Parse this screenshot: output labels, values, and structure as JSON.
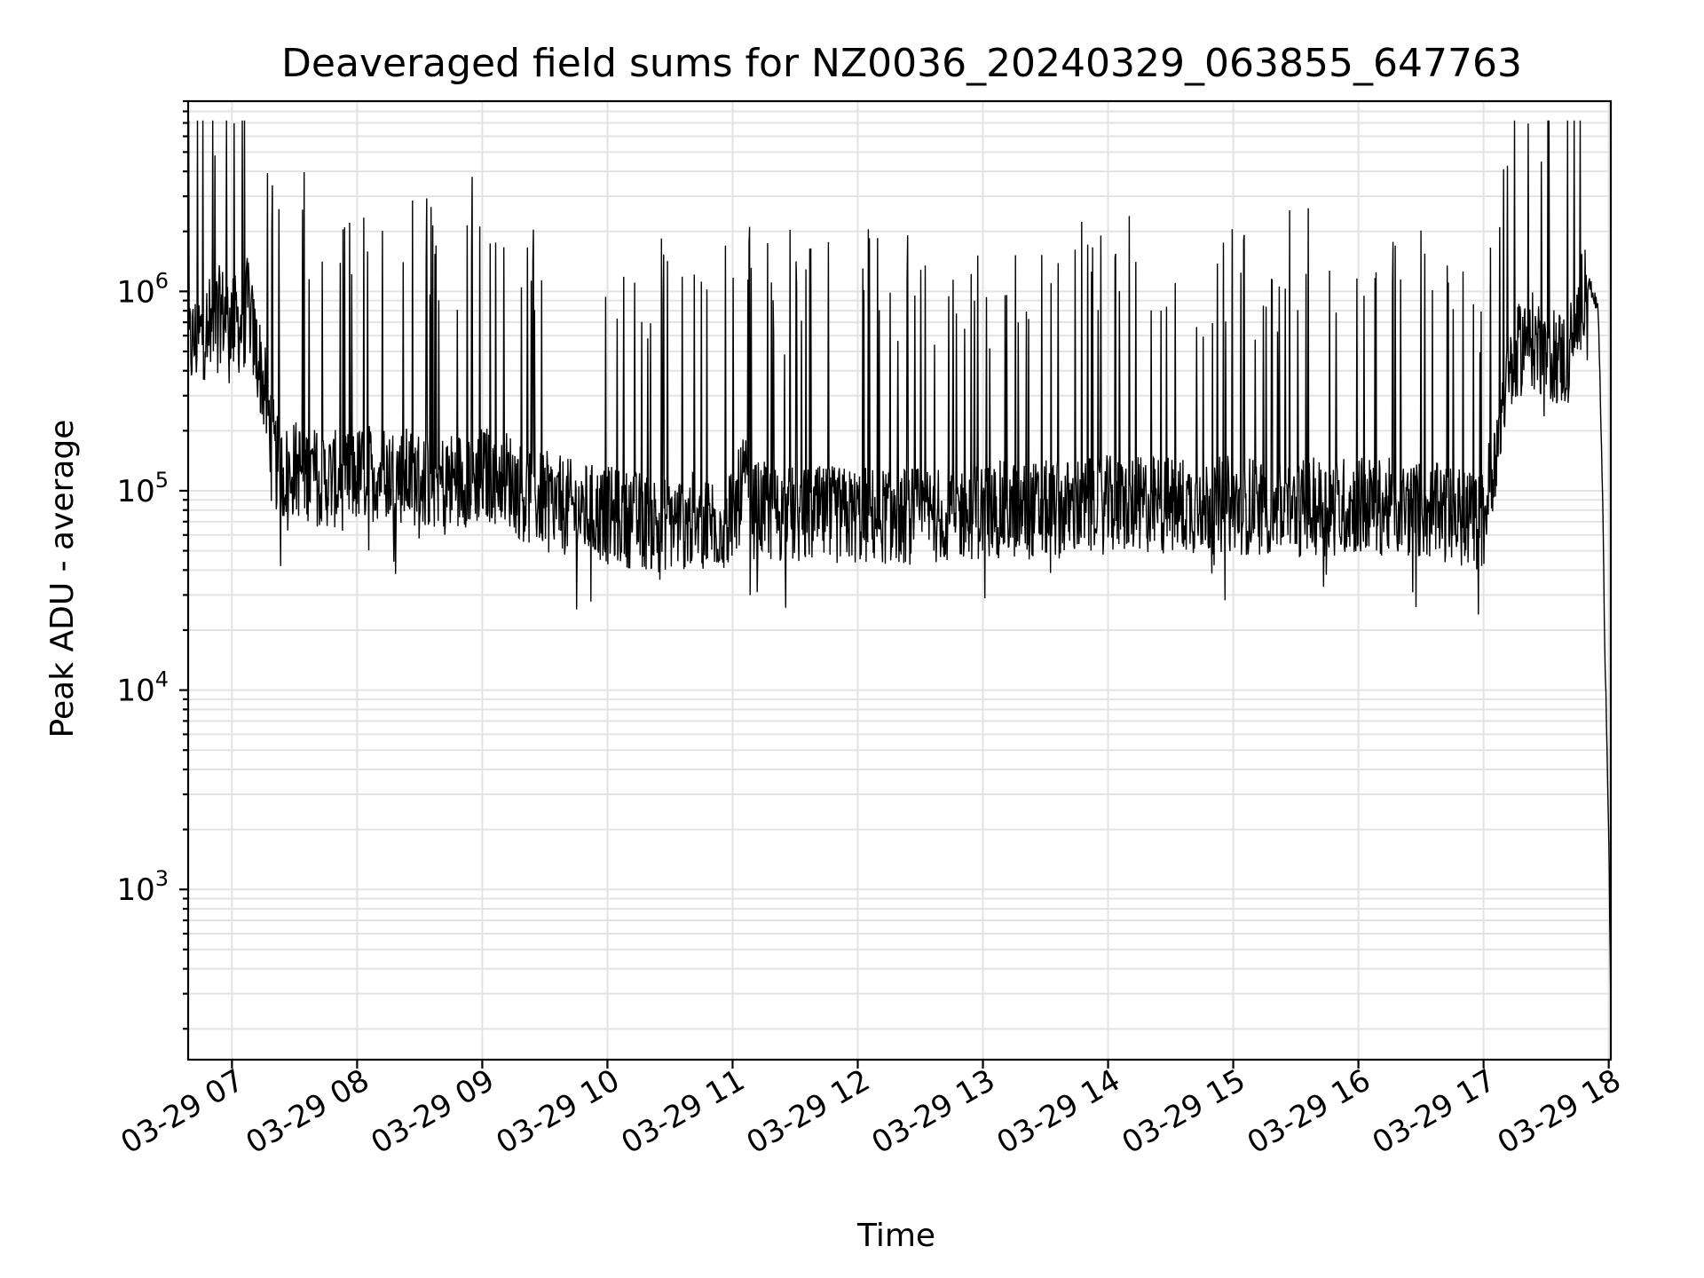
{
  "chart_data": {
    "type": "line",
    "title": "Deaveraged field sums for NZ0036_20240329_063855_647763",
    "xlabel": "Time",
    "ylabel": "Peak ADU - average",
    "yscale": "log",
    "ylim": [
      140,
      9000000
    ],
    "xlim": [
      "2024-03-29 06:39",
      "2024-03-29 18:01"
    ],
    "grid": "on (major and minor, both axes)",
    "x_ticks": [
      "03-29 07",
      "03-29 08",
      "03-29 09",
      "03-29 10",
      "03-29 11",
      "03-29 12",
      "03-29 13",
      "03-29 14",
      "03-29 15",
      "03-29 16",
      "03-29 17",
      "03-29 18"
    ],
    "y_ticks": [
      {
        "value": 1000,
        "base": "10",
        "exp": "3"
      },
      {
        "value": 10000,
        "base": "10",
        "exp": "4"
      },
      {
        "value": 100000,
        "base": "10",
        "exp": "5"
      },
      {
        "value": 1000000,
        "base": "10",
        "exp": "6"
      }
    ],
    "series": [
      {
        "color": "#000000",
        "x": [
          "2024-03-29 06:39",
          "2024-03-29 06:45",
          "2024-03-29 06:50",
          "2024-03-29 06:55",
          "2024-03-29 07:00",
          "2024-03-29 07:05",
          "2024-03-29 07:08",
          "2024-03-29 07:10",
          "2024-03-29 07:14",
          "2024-03-29 07:18",
          "2024-03-29 07:21",
          "2024-03-29 07:24",
          "2024-03-29 07:30",
          "2024-03-29 07:36",
          "2024-03-29 07:42",
          "2024-03-29 07:48",
          "2024-03-29 07:54",
          "2024-03-29 08:00",
          "2024-03-29 08:10",
          "2024-03-29 08:20",
          "2024-03-29 08:30",
          "2024-03-29 08:40",
          "2024-03-29 08:50",
          "2024-03-29 09:00",
          "2024-03-29 09:10",
          "2024-03-29 09:15",
          "2024-03-29 09:18",
          "2024-03-29 09:21",
          "2024-03-29 09:30",
          "2024-03-29 09:45",
          "2024-03-29 10:00",
          "2024-03-29 10:20",
          "2024-03-29 10:40",
          "2024-03-29 11:00",
          "2024-03-29 11:05",
          "2024-03-29 11:10",
          "2024-03-29 11:30",
          "2024-03-29 12:00",
          "2024-03-29 12:30",
          "2024-03-29 13:00",
          "2024-03-29 13:30",
          "2024-03-29 14:00",
          "2024-03-29 14:30",
          "2024-03-29 15:00",
          "2024-03-29 15:30",
          "2024-03-29 16:00",
          "2024-03-29 16:30",
          "2024-03-29 17:00",
          "2024-03-29 17:10",
          "2024-03-29 17:20",
          "2024-03-29 17:30",
          "2024-03-29 17:40",
          "2024-03-29 17:45",
          "2024-03-29 17:49",
          "2024-03-29 17:52",
          "2024-03-29 17:55",
          "2024-03-29 17:57",
          "2024-03-29 17:58",
          "2024-03-29 18:00",
          "2024-03-29 18:01"
        ],
        "y": [
          520000,
          600000,
          700000,
          780000,
          720000,
          650000,
          900000,
          600000,
          400000,
          220000,
          140000,
          120000,
          130000,
          125000,
          115000,
          115000,
          110000,
          120000,
          125000,
          120000,
          115000,
          110000,
          115000,
          120000,
          120000,
          110000,
          100000,
          95000,
          90000,
          80000,
          75000,
          70000,
          70000,
          70000,
          110000,
          80000,
          75000,
          75000,
          75000,
          80000,
          80000,
          85000,
          85000,
          85000,
          82000,
          85000,
          80000,
          70000,
          320000,
          600000,
          500000,
          450000,
          700000,
          1200000,
          1000000,
          800000,
          100000,
          20000,
          2000,
          240
        ]
      }
    ]
  }
}
